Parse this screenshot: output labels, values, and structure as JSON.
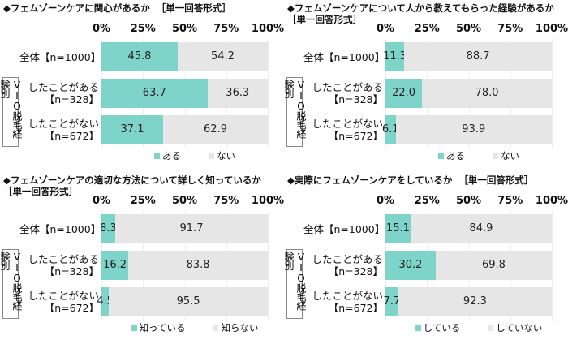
{
  "chart_data": [
    {
      "type": "bar",
      "orientation": "horizontal",
      "stacked": true,
      "title": "◆フェムゾーンケアに関心があるか",
      "subtitle": "［単一回答形式］",
      "group_label": "VIO脱毛経験別",
      "categories": [
        "全体【n=1000】",
        "したことがある【n=328】",
        "したことがない【n=672】"
      ],
      "series": [
        {
          "name": "ある",
          "color": "#7fd4c9",
          "values": [
            45.8,
            63.7,
            37.1
          ]
        },
        {
          "name": "ない",
          "color": "#e6e6e6",
          "values": [
            54.2,
            36.3,
            62.9
          ]
        }
      ],
      "xlim": [
        0,
        100
      ],
      "xticks": [
        {
          "value": 0,
          "label": "0%"
        },
        {
          "value": 25,
          "label": "25%"
        },
        {
          "value": 50,
          "label": "50%"
        },
        {
          "value": 75,
          "label": "75%"
        },
        {
          "value": 100,
          "label": "100%"
        }
      ],
      "grid": true,
      "legend": "bottom"
    },
    {
      "type": "bar",
      "orientation": "horizontal",
      "stacked": true,
      "title": "◆フェムゾーンケアについて人から教えてもらった経験があるか",
      "subtitle": "［単一回答形式］",
      "group_label": "VIO脱毛経験別",
      "categories": [
        "全体【n=1000】",
        "したことがある【n=328】",
        "したことがない【n=672】"
      ],
      "series": [
        {
          "name": "ある",
          "color": "#7fd4c9",
          "values": [
            11.3,
            22.0,
            6.1
          ],
          "value_labels": [
            "11.3",
            "22.0",
            "6.1"
          ]
        },
        {
          "name": "ない",
          "color": "#e6e6e6",
          "values": [
            88.7,
            78.0,
            93.9
          ],
          "value_labels": [
            "88.7",
            "78.0",
            "93.9"
          ]
        }
      ],
      "xlim": [
        0,
        100
      ],
      "xticks": [
        {
          "value": 0,
          "label": "0%"
        },
        {
          "value": 25,
          "label": "25%"
        },
        {
          "value": 50,
          "label": "50%"
        },
        {
          "value": 75,
          "label": "75%"
        },
        {
          "value": 100,
          "label": "100%"
        }
      ],
      "grid": true,
      "legend": "bottom"
    },
    {
      "type": "bar",
      "orientation": "horizontal",
      "stacked": true,
      "title": "◆フェムゾーンケアの適切な方法について詳しく知っているか",
      "subtitle": "［単一回答形式］",
      "group_label": "VIO脱毛経験別",
      "categories": [
        "全体【n=1000】",
        "したことがある【n=328】",
        "したことがない【n=672】"
      ],
      "series": [
        {
          "name": "知っている",
          "color": "#7fd4c9",
          "values": [
            8.3,
            16.2,
            4.5
          ]
        },
        {
          "name": "知らない",
          "color": "#e6e6e6",
          "values": [
            91.7,
            83.8,
            95.5
          ]
        }
      ],
      "xlim": [
        0,
        100
      ],
      "xticks": [
        {
          "value": 0,
          "label": "0%"
        },
        {
          "value": 25,
          "label": "25%"
        },
        {
          "value": 50,
          "label": "50%"
        },
        {
          "value": 75,
          "label": "75%"
        },
        {
          "value": 100,
          "label": "100%"
        }
      ],
      "grid": true,
      "legend": "bottom"
    },
    {
      "type": "bar",
      "orientation": "horizontal",
      "stacked": true,
      "title": "◆実際にフェムゾーンケアをしているか",
      "subtitle": "［単一回答形式］",
      "group_label": "VIO脱毛経験別",
      "categories": [
        "全体【n=1000】",
        "したことがある【n=328】",
        "したことがない【n=672】"
      ],
      "series": [
        {
          "name": "している",
          "color": "#7fd4c9",
          "values": [
            15.1,
            30.2,
            7.7
          ]
        },
        {
          "name": "していない",
          "color": "#e6e6e6",
          "values": [
            84.9,
            69.8,
            92.3
          ]
        }
      ],
      "xlim": [
        0,
        100
      ],
      "xticks": [
        {
          "value": 0,
          "label": "0%"
        },
        {
          "value": 25,
          "label": "25%"
        },
        {
          "value": 50,
          "label": "50%"
        },
        {
          "value": 75,
          "label": "75%"
        },
        {
          "value": 100,
          "label": "100%"
        }
      ],
      "grid": true,
      "legend": "bottom"
    }
  ]
}
